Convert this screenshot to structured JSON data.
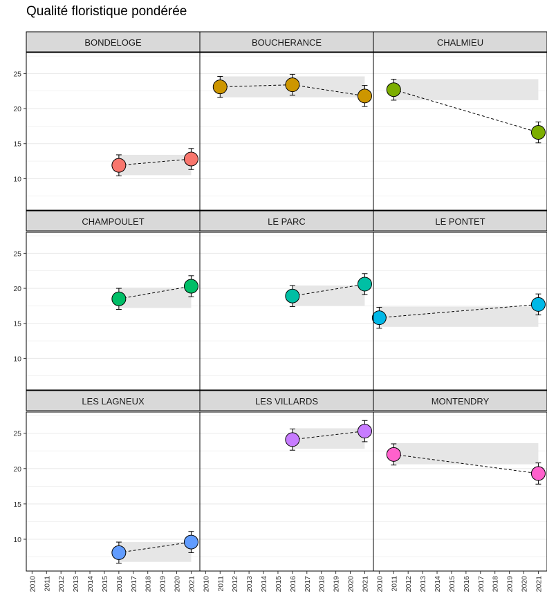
{
  "chart_data": {
    "type": "scatter",
    "title": "Qualité floristique pondérée",
    "xlabel": "",
    "ylabel": "",
    "x_ticks": [
      "2010",
      "2011",
      "2012",
      "2013",
      "2014",
      "2015",
      "2016",
      "2017",
      "2018",
      "2019",
      "2020",
      "2021"
    ],
    "y_ticks": [
      10,
      15,
      20,
      25
    ],
    "xlim": [
      2009.6,
      2021.6
    ],
    "ylim": [
      5.5,
      28.0
    ],
    "grid": true,
    "panels": [
      {
        "name": "BONDELOGE",
        "color": "#F8766D",
        "points": [
          {
            "x": 2016,
            "y": 11.9,
            "low": 10.4,
            "high": 13.4
          },
          {
            "x": 2021,
            "y": 12.8,
            "low": 11.3,
            "high": 14.3
          }
        ],
        "band": {
          "x0": 2016,
          "x1": 2021,
          "low": 10.5,
          "high": 13.4
        }
      },
      {
        "name": "BOUCHERANCE",
        "color": "#CD9600",
        "points": [
          {
            "x": 2011,
            "y": 23.1,
            "low": 21.6,
            "high": 24.6
          },
          {
            "x": 2016,
            "y": 23.4,
            "low": 21.9,
            "high": 24.9
          },
          {
            "x": 2021,
            "y": 21.8,
            "low": 20.3,
            "high": 23.3
          }
        ],
        "band": {
          "x0": 2011,
          "x1": 2021,
          "low": 21.6,
          "high": 24.6
        }
      },
      {
        "name": "CHALMIEU",
        "color": "#7CAE00",
        "points": [
          {
            "x": 2011,
            "y": 22.7,
            "low": 21.2,
            "high": 24.2
          },
          {
            "x": 2021,
            "y": 16.6,
            "low": 15.1,
            "high": 18.1
          }
        ],
        "band": {
          "x0": 2011,
          "x1": 2021,
          "low": 21.2,
          "high": 24.2
        }
      },
      {
        "name": "CHAMPOULET",
        "color": "#00BE67",
        "points": [
          {
            "x": 2016,
            "y": 18.5,
            "low": 17.0,
            "high": 20.0
          },
          {
            "x": 2021,
            "y": 20.3,
            "low": 18.8,
            "high": 21.8
          }
        ],
        "band": {
          "x0": 2016,
          "x1": 2021,
          "low": 17.2,
          "high": 20.1
        }
      },
      {
        "name": "LE PARC",
        "color": "#00BFA4",
        "points": [
          {
            "x": 2016,
            "y": 18.9,
            "low": 17.4,
            "high": 20.4
          },
          {
            "x": 2021,
            "y": 20.6,
            "low": 19.1,
            "high": 22.1
          }
        ],
        "band": {
          "x0": 2016,
          "x1": 2021,
          "low": 17.5,
          "high": 20.4
        }
      },
      {
        "name": "LE PONTET",
        "color": "#00B8E7",
        "points": [
          {
            "x": 2010,
            "y": 15.8,
            "low": 14.3,
            "high": 17.3
          },
          {
            "x": 2021,
            "y": 17.7,
            "low": 16.2,
            "high": 19.2
          }
        ],
        "band": {
          "x0": 2010,
          "x1": 2021,
          "low": 14.5,
          "high": 17.4
        }
      },
      {
        "name": "LES LAGNEUX",
        "color": "#619CFF",
        "points": [
          {
            "x": 2016,
            "y": 8.1,
            "low": 6.6,
            "high": 9.6
          },
          {
            "x": 2021,
            "y": 9.6,
            "low": 8.1,
            "high": 11.1
          }
        ],
        "band": {
          "x0": 2016,
          "x1": 2021,
          "low": 6.8,
          "high": 9.6
        }
      },
      {
        "name": "LES VILLARDS",
        "color": "#C77CFF",
        "points": [
          {
            "x": 2016,
            "y": 24.1,
            "low": 22.6,
            "high": 25.6
          },
          {
            "x": 2021,
            "y": 25.3,
            "low": 23.8,
            "high": 26.8
          }
        ],
        "band": {
          "x0": 2016,
          "x1": 2021,
          "low": 22.8,
          "high": 25.7
        }
      },
      {
        "name": "MONTENDRY",
        "color": "#FF61CC",
        "points": [
          {
            "x": 2011,
            "y": 22.0,
            "low": 20.5,
            "high": 23.5
          },
          {
            "x": 2021,
            "y": 19.3,
            "low": 17.8,
            "high": 20.8
          }
        ],
        "band": {
          "x0": 2011,
          "x1": 2021,
          "low": 20.6,
          "high": 23.6
        }
      }
    ]
  },
  "style": {
    "strip_fill": "#D9D9D9",
    "band_fill": "#E6E6E6",
    "grid_color": "#EBEBEB",
    "border_color": "#000000"
  }
}
